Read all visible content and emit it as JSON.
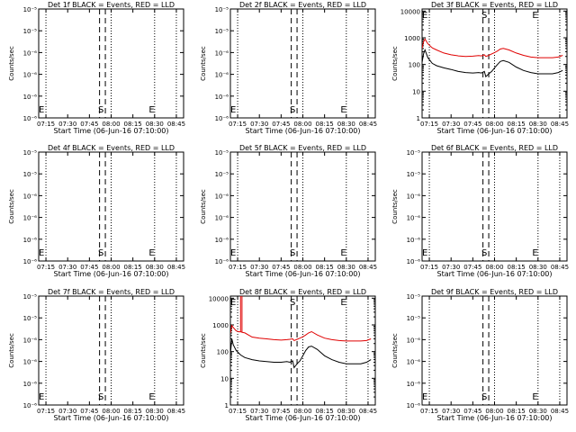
{
  "figure": {
    "colors": {
      "events": "#000000",
      "lld": "#e00000",
      "axes": "#000000",
      "background": "#ffffff"
    }
  },
  "chart_data": [
    {
      "type": "line",
      "title": "Det 1f BLACK = Events, RED = LLD",
      "xlabel": "Start Time (06-Jun-16 07:10:00)",
      "ylabel": "Counts/sec",
      "xlim": [
        "07:10",
        "08:50"
      ],
      "x_ticks": [
        "07:15",
        "07:30",
        "07:45",
        "08:00",
        "08:15",
        "08:30",
        "08:45"
      ],
      "yscale": "log",
      "ylim": [
        1e-06,
        1e-05
      ],
      "y_ticks": [
        "10⁻⁶",
        "10⁻⁶",
        "10⁻⁶",
        "10⁻⁶",
        "10⁻⁵",
        "10⁻⁵"
      ],
      "markers": {
        "dotted": [
          "07:15",
          "08:00",
          "08:30",
          "08:45"
        ],
        "dashed": [
          "07:52",
          "07:56"
        ],
        "labels": [
          {
            "text": "E",
            "x": "07:12"
          },
          {
            "text": "S",
            "x": "07:53"
          },
          {
            "text": "E",
            "x": "08:28"
          }
        ]
      },
      "series": []
    },
    {
      "type": "line",
      "title": "Det 2f BLACK = Events, RED = LLD",
      "xlabel": "Start Time (06-Jun-16 07:10:00)",
      "ylabel": "Counts/sec",
      "xlim": [
        "07:10",
        "08:50"
      ],
      "x_ticks": [
        "07:15",
        "07:30",
        "07:45",
        "08:00",
        "08:15",
        "08:30",
        "08:45"
      ],
      "yscale": "log",
      "ylim": [
        1e-06,
        1e-05
      ],
      "y_ticks": [
        "10⁻⁶",
        "10⁻⁶",
        "10⁻⁶",
        "10⁻⁶",
        "10⁻⁵",
        "10⁻⁵"
      ],
      "markers": {
        "dotted": [
          "07:15",
          "08:00",
          "08:30",
          "08:45"
        ],
        "dashed": [
          "07:52",
          "07:56"
        ],
        "labels": [
          {
            "text": "E",
            "x": "07:12"
          },
          {
            "text": "S",
            "x": "07:53"
          },
          {
            "text": "E",
            "x": "08:28"
          }
        ]
      },
      "series": []
    },
    {
      "type": "line",
      "title": "Det 3f BLACK = Events, RED = LLD",
      "xlabel": "Start Time (06-Jun-16 07:10:00)",
      "ylabel": "Counts/sec",
      "xlim": [
        "07:10",
        "08:50"
      ],
      "x_ticks": [
        "07:15",
        "07:30",
        "07:45",
        "08:00",
        "08:15",
        "08:30",
        "08:45"
      ],
      "yscale": "log",
      "ylim": [
        1,
        12000
      ],
      "y_ticks": [
        "1",
        "10",
        "100",
        "1000",
        "10000"
      ],
      "markers": {
        "dotted": [
          "07:15",
          "08:00",
          "08:30",
          "08:45"
        ],
        "dashed": [
          "07:52",
          "07:56"
        ],
        "labels": [
          {
            "text": "E",
            "x": "07:12"
          },
          {
            "text": "S",
            "x": "07:53"
          },
          {
            "text": "E",
            "x": "08:28"
          }
        ]
      },
      "series": [
        {
          "color": "#e00000",
          "x": [
            "07:10",
            "07:11",
            "07:12",
            "07:14",
            "07:17",
            "07:20",
            "07:25",
            "07:30",
            "07:35",
            "07:40",
            "07:45",
            "07:49",
            "07:51",
            "07:53",
            "07:54",
            "07:56",
            "07:58",
            "08:00",
            "08:02",
            "08:04",
            "08:06",
            "08:10",
            "08:15",
            "08:20",
            "08:25",
            "08:30",
            "08:35",
            "08:40",
            "08:44",
            "08:47"
          ],
          "y": [
            400,
            700,
            900,
            600,
            420,
            350,
            270,
            230,
            210,
            200,
            205,
            215,
            210,
            230,
            200,
            220,
            250,
            280,
            320,
            380,
            400,
            350,
            270,
            220,
            190,
            180,
            180,
            180,
            190,
            220
          ]
        },
        {
          "color": "#000000",
          "x": [
            "07:10",
            "07:11",
            "07:12",
            "07:14",
            "07:17",
            "07:20",
            "07:25",
            "07:30",
            "07:35",
            "07:40",
            "07:45",
            "07:49",
            "07:51",
            "07:53",
            "07:54",
            "07:56",
            "07:58",
            "08:00",
            "08:02",
            "08:04",
            "08:06",
            "08:10",
            "08:15",
            "08:20",
            "08:25",
            "08:30",
            "08:35",
            "08:40",
            "08:44",
            "08:47"
          ],
          "y": [
            120,
            250,
            350,
            180,
            110,
            90,
            75,
            65,
            55,
            50,
            48,
            50,
            48,
            55,
            35,
            45,
            55,
            75,
            100,
            130,
            140,
            120,
            80,
            60,
            50,
            45,
            45,
            45,
            50,
            60
          ]
        }
      ]
    },
    {
      "type": "line",
      "title": "Det 4f BLACK = Events, RED = LLD",
      "xlabel": "Start Time (06-Jun-16 07:10:00)",
      "ylabel": "Counts/sec",
      "xlim": [
        "07:10",
        "08:50"
      ],
      "x_ticks": [
        "07:15",
        "07:30",
        "07:45",
        "08:00",
        "08:15",
        "08:30",
        "08:45"
      ],
      "yscale": "log",
      "ylim": [
        1e-06,
        1e-05
      ],
      "y_ticks": [
        "10⁻⁶",
        "10⁻⁶",
        "10⁻⁶",
        "10⁻⁶",
        "10⁻⁵",
        "10⁻⁵"
      ],
      "markers": {
        "dotted": [
          "07:15",
          "08:00",
          "08:30",
          "08:45"
        ],
        "dashed": [
          "07:52",
          "07:56"
        ],
        "labels": [
          {
            "text": "E",
            "x": "07:12"
          },
          {
            "text": "S",
            "x": "07:53"
          },
          {
            "text": "E",
            "x": "08:28"
          }
        ]
      },
      "series": []
    },
    {
      "type": "line",
      "title": "Det 5f BLACK = Events, RED = LLD",
      "xlabel": "Start Time (06-Jun-16 07:10:00)",
      "ylabel": "Counts/sec",
      "xlim": [
        "07:10",
        "08:50"
      ],
      "x_ticks": [
        "07:15",
        "07:30",
        "07:45",
        "08:00",
        "08:15",
        "08:30",
        "08:45"
      ],
      "yscale": "log",
      "ylim": [
        1e-06,
        1e-05
      ],
      "y_ticks": [
        "10⁻⁶",
        "10⁻⁶",
        "10⁻⁶",
        "10⁻⁶",
        "10⁻⁵",
        "10⁻⁵"
      ],
      "markers": {
        "dotted": [
          "07:15",
          "08:00",
          "08:30",
          "08:45"
        ],
        "dashed": [
          "07:52",
          "07:56"
        ],
        "labels": [
          {
            "text": "E",
            "x": "07:12"
          },
          {
            "text": "S",
            "x": "07:53"
          },
          {
            "text": "E",
            "x": "08:28"
          }
        ]
      },
      "series": []
    },
    {
      "type": "line",
      "title": "Det 6f BLACK = Events, RED = LLD",
      "xlabel": "Start Time (06-Jun-16 07:10:00)",
      "ylabel": "Counts/sec",
      "xlim": [
        "07:10",
        "08:50"
      ],
      "x_ticks": [
        "07:15",
        "07:30",
        "07:45",
        "08:00",
        "08:15",
        "08:30",
        "08:45"
      ],
      "yscale": "log",
      "ylim": [
        1e-06,
        1e-05
      ],
      "y_ticks": [
        "10⁻⁶",
        "10⁻⁶",
        "10⁻⁶",
        "10⁻⁶",
        "10⁻⁵",
        "10⁻⁵"
      ],
      "markers": {
        "dotted": [
          "07:15",
          "08:00",
          "08:30",
          "08:45"
        ],
        "dashed": [
          "07:52",
          "07:56"
        ],
        "labels": [
          {
            "text": "E",
            "x": "07:12"
          },
          {
            "text": "S",
            "x": "07:53"
          },
          {
            "text": "E",
            "x": "08:28"
          }
        ]
      },
      "series": []
    },
    {
      "type": "line",
      "title": "Det 7f BLACK = Events, RED = LLD",
      "xlabel": "Start Time (06-Jun-16 07:10:00)",
      "ylabel": "Counts/sec",
      "xlim": [
        "07:10",
        "08:50"
      ],
      "x_ticks": [
        "07:15",
        "07:30",
        "07:45",
        "08:00",
        "08:15",
        "08:30",
        "08:45"
      ],
      "yscale": "log",
      "ylim": [
        1e-06,
        1e-05
      ],
      "y_ticks": [
        "10⁻⁶",
        "10⁻⁶",
        "10⁻⁶",
        "10⁻⁶",
        "10⁻⁵",
        "10⁻⁵"
      ],
      "markers": {
        "dotted": [
          "07:15",
          "08:00",
          "08:30",
          "08:45"
        ],
        "dashed": [
          "07:52",
          "07:56"
        ],
        "labels": [
          {
            "text": "E",
            "x": "07:12"
          },
          {
            "text": "S",
            "x": "07:53"
          },
          {
            "text": "E",
            "x": "08:28"
          }
        ]
      },
      "series": []
    },
    {
      "type": "line",
      "title": "Det 8f BLACK = Events, RED = LLD",
      "xlabel": "Start Time (06-Jun-16 07:10:00)",
      "ylabel": "Counts/sec",
      "xlim": [
        "07:10",
        "08:50"
      ],
      "x_ticks": [
        "07:15",
        "07:30",
        "07:45",
        "08:00",
        "08:15",
        "08:30",
        "08:45"
      ],
      "yscale": "log",
      "ylim": [
        1,
        12000
      ],
      "y_ticks": [
        "1",
        "10",
        "100",
        "1000",
        "10000"
      ],
      "markers": {
        "dotted": [
          "07:15",
          "08:00",
          "08:30",
          "08:45"
        ],
        "dashed": [
          "07:52",
          "07:56"
        ],
        "labels": [
          {
            "text": "E",
            "x": "07:12"
          },
          {
            "text": "S",
            "x": "07:53"
          },
          {
            "text": "E",
            "x": "08:28"
          }
        ]
      },
      "series": [
        {
          "color": "#e00000",
          "x": [
            "07:10",
            "07:11",
            "07:12",
            "07:14",
            "07:16",
            "07:17",
            "07:17",
            "07:17",
            "07:18",
            "07:18",
            "07:18",
            "07:20",
            "07:25",
            "07:30",
            "07:35",
            "07:40",
            "07:45",
            "07:49",
            "07:51",
            "07:53",
            "07:54",
            "07:56",
            "07:58",
            "08:00",
            "08:02",
            "08:04",
            "08:06",
            "08:10",
            "08:15",
            "08:20",
            "08:25",
            "08:30",
            "08:35",
            "08:40",
            "08:44",
            "08:47"
          ],
          "y": [
            500,
            950,
            800,
            600,
            550,
            560,
            12000,
            550,
            540,
            12000,
            530,
            500,
            350,
            320,
            300,
            280,
            270,
            280,
            290,
            300,
            260,
            290,
            320,
            360,
            420,
            500,
            560,
            420,
            320,
            280,
            260,
            250,
            250,
            250,
            260,
            300
          ]
        },
        {
          "color": "#000000",
          "x": [
            "07:10",
            "07:11",
            "07:12",
            "07:14",
            "07:17",
            "07:20",
            "07:25",
            "07:30",
            "07:35",
            "07:40",
            "07:45",
            "07:49",
            "07:51",
            "07:53",
            "07:54",
            "07:56",
            "07:58",
            "08:00",
            "08:02",
            "08:04",
            "08:06",
            "08:10",
            "08:15",
            "08:20",
            "08:25",
            "08:30",
            "08:35",
            "08:40",
            "08:44",
            "08:47"
          ],
          "y": [
            80,
            300,
            180,
            110,
            75,
            60,
            50,
            45,
            42,
            40,
            40,
            42,
            40,
            45,
            25,
            35,
            45,
            70,
            110,
            150,
            160,
            120,
            70,
            50,
            40,
            35,
            35,
            35,
            40,
            50
          ]
        }
      ]
    },
    {
      "type": "line",
      "title": "Det 9f BLACK = Events, RED = LLD",
      "xlabel": "Start Time (06-Jun-16 07:10:00)",
      "ylabel": "Counts/sec",
      "xlim": [
        "07:10",
        "08:50"
      ],
      "x_ticks": [
        "07:15",
        "07:30",
        "07:45",
        "08:00",
        "08:15",
        "08:30",
        "08:45"
      ],
      "yscale": "log",
      "ylim": [
        1e-06,
        1e-05
      ],
      "y_ticks": [
        "10⁻⁶",
        "10⁻⁶",
        "10⁻⁶",
        "10⁻⁶",
        "10⁻⁵",
        "10⁻⁵"
      ],
      "markers": {
        "dotted": [
          "07:15",
          "08:00",
          "08:30",
          "08:45"
        ],
        "dashed": [
          "07:52",
          "07:56"
        ],
        "labels": [
          {
            "text": "E",
            "x": "07:12"
          },
          {
            "text": "S",
            "x": "07:53"
          },
          {
            "text": "E",
            "x": "08:28"
          }
        ]
      },
      "series": []
    }
  ]
}
